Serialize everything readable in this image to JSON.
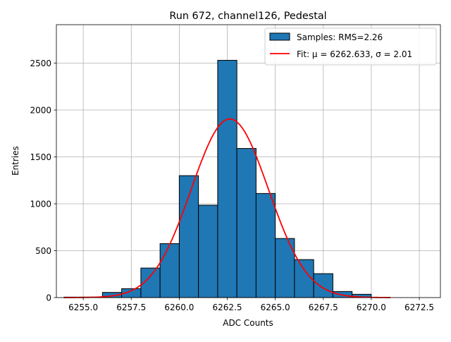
{
  "chart_data": {
    "type": "histogram",
    "title": "Run 672, channel126, Pedestal",
    "xlabel": "ADC Counts",
    "ylabel": "Entries",
    "xlim": [
      6253.6,
      6273.6
    ],
    "ylim": [
      0,
      2910
    ],
    "xticks": [
      6255.0,
      6257.5,
      6260.0,
      6262.5,
      6265.0,
      6267.5,
      6270.0,
      6272.5
    ],
    "xtick_labels": [
      "6255.0",
      "6257.5",
      "6260.0",
      "6262.5",
      "6265.0",
      "6267.5",
      "6270.0",
      "6272.5"
    ],
    "yticks": [
      0,
      500,
      1000,
      1500,
      2000,
      2500
    ],
    "ytick_labels": [
      "0",
      "500",
      "1000",
      "1500",
      "2000",
      "2500"
    ],
    "grid": true,
    "legend_position": "top-right",
    "bins": {
      "edges": [
        6254.0,
        6255.0,
        6256.0,
        6257.0,
        6258.0,
        6259.0,
        6260.0,
        6261.0,
        6262.0,
        6263.0,
        6264.0,
        6265.0,
        6266.0,
        6267.0,
        6268.0,
        6269.0,
        6270.0,
        6271.0,
        6272.0
      ],
      "counts": [
        5,
        5,
        55,
        95,
        315,
        575,
        1300,
        985,
        2530,
        1590,
        1110,
        630,
        405,
        255,
        65,
        35,
        0,
        0
      ],
      "color": "#1f77b4",
      "edgecolor": "#000000"
    },
    "series": [
      {
        "name": "Samples: RMS=2.26",
        "kind": "histogram",
        "color": "#1f77b4"
      },
      {
        "name": "Fit: μ = 6262.633, σ = 2.01",
        "kind": "gaussian",
        "mu": 6262.633,
        "sigma": 2.01,
        "amplitude": 1905,
        "x_range": [
          6254.0,
          6271.0
        ],
        "color": "#ff0000"
      }
    ]
  }
}
